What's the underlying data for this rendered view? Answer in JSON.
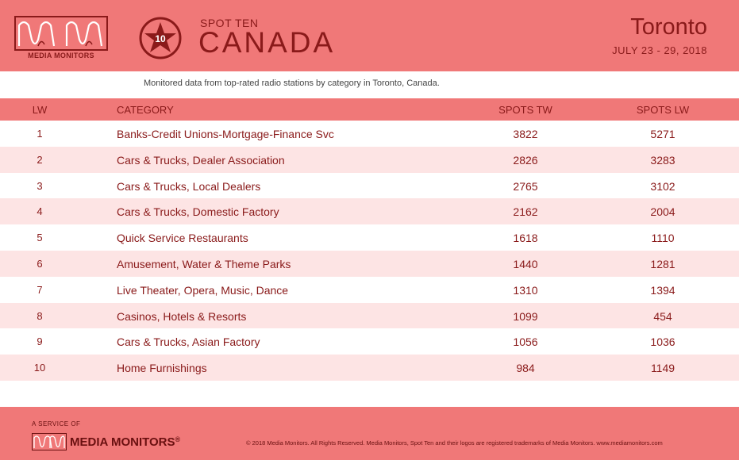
{
  "header": {
    "brand": "MEDIA MONITORS",
    "badge_number": "10",
    "spot_ten": "SPOT TEN",
    "country": "CANADA",
    "city": "Toronto",
    "dates": "JULY 23 - 29, 2018"
  },
  "subtitle": "Monitored data from top-rated radio stations by category in Toronto, Canada.",
  "table": {
    "columns": [
      "LW",
      "CATEGORY",
      "SPOTS TW",
      "SPOTS LW"
    ],
    "rows": [
      {
        "lw": "1",
        "category": "Banks-Credit Unions-Mortgage-Finance Svc",
        "spots_tw": "3822",
        "spots_lw": "5271"
      },
      {
        "lw": "2",
        "category": "Cars & Trucks, Dealer Association",
        "spots_tw": "2826",
        "spots_lw": "3283"
      },
      {
        "lw": "3",
        "category": "Cars & Trucks, Local Dealers",
        "spots_tw": "2765",
        "spots_lw": "3102"
      },
      {
        "lw": "4",
        "category": "Cars & Trucks, Domestic Factory",
        "spots_tw": "2162",
        "spots_lw": "2004"
      },
      {
        "lw": "5",
        "category": "Quick Service Restaurants",
        "spots_tw": "1618",
        "spots_lw": "1110"
      },
      {
        "lw": "6",
        "category": "Amusement, Water & Theme Parks",
        "spots_tw": "1440",
        "spots_lw": "1281"
      },
      {
        "lw": "7",
        "category": "Live Theater, Opera, Music, Dance",
        "spots_tw": "1310",
        "spots_lw": "1394"
      },
      {
        "lw": "8",
        "category": "Casinos, Hotels & Resorts",
        "spots_tw": "1099",
        "spots_lw": "454"
      },
      {
        "lw": "9",
        "category": "Cars & Trucks, Asian Factory",
        "spots_tw": "1056",
        "spots_lw": "1036"
      },
      {
        "lw": "10",
        "category": "Home Furnishings",
        "spots_tw": "984",
        "spots_lw": "1149"
      }
    ]
  },
  "footer": {
    "service": "A SERVICE OF",
    "brand": "MEDIA MONITORS",
    "registered": "®",
    "copyright": "© 2018 Media Monitors. All Rights Reserved. Media Monitors, Spot Ten and their logos are registered trademarks of Media Monitors. www.mediamonitors.com"
  },
  "colors": {
    "header_bg": "#f07878",
    "accent_text": "#8a1a1a",
    "alt_row_bg": "#fde4e4"
  },
  "icons": [
    "media-monitors-logo",
    "spot-ten-star-badge"
  ]
}
